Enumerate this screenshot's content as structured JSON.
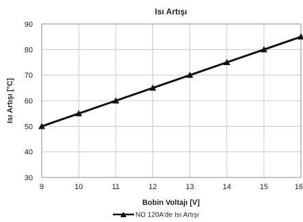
{
  "chart_data": {
    "type": "line",
    "title": "Isı Artışı",
    "xlabel": "Bobin Voltajı [V]",
    "ylabel": "Isı Artışı [°C]",
    "xlim": [
      9,
      16
    ],
    "ylim": [
      30,
      90
    ],
    "xticks": [
      9,
      10,
      11,
      12,
      13,
      14,
      15,
      16
    ],
    "yticks": [
      30,
      40,
      50,
      60,
      70,
      80,
      90
    ],
    "grid": true,
    "legend": "bottom",
    "series": [
      {
        "name": "NO 120A'de Isı Artışı",
        "color": "#111111",
        "marker": "triangle",
        "x": [
          9,
          10,
          11,
          12,
          13,
          14,
          15,
          16
        ],
        "y": [
          50,
          55,
          60,
          65,
          70,
          75,
          80,
          85
        ]
      }
    ]
  }
}
